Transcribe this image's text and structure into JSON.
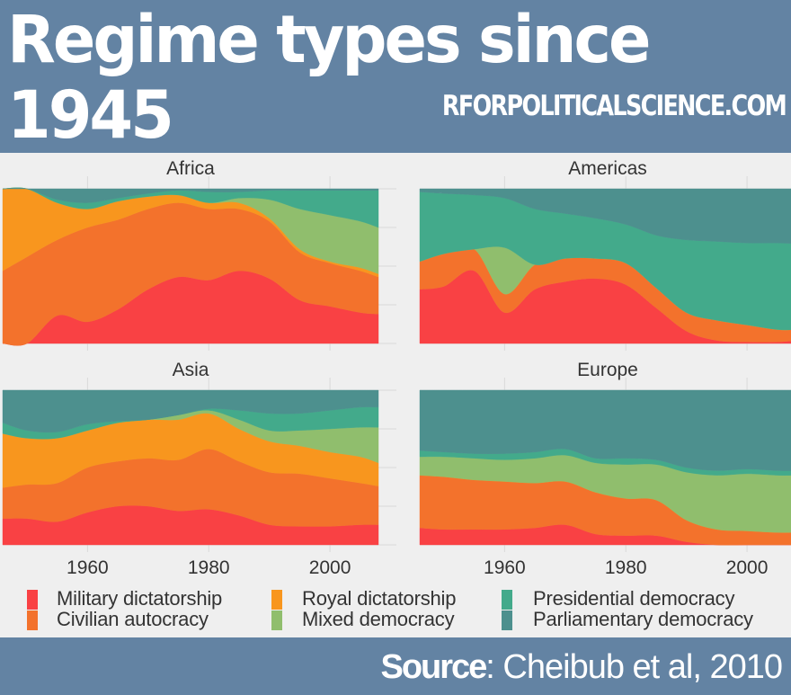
{
  "header": {
    "title": "Regime types since 1945",
    "site": "RFORPOLITICALSCIENCE.COM"
  },
  "footer": {
    "source_label": "Source",
    "source_text": ": Cheibub et al, 2010"
  },
  "colors": {
    "header_bg": "#6383a3",
    "panel_bg": "#efefef",
    "Military dictatorship": "#f94144",
    "Civilian autocracy": "#f3722c",
    "Royal dictatorship": "#f8961e",
    "Mixed democracy": "#90be6d",
    "Presidential democracy": "#43aa8b",
    "Parliamentary democracy": "#4d908e"
  },
  "legend": [
    {
      "label": "Military dictatorship",
      "key": "Military dictatorship"
    },
    {
      "label": "Civilian autocracy",
      "key": "Civilian autocracy"
    },
    {
      "label": "Royal dictatorship",
      "key": "Royal dictatorship"
    },
    {
      "label": "Mixed democracy",
      "key": "Mixed democracy"
    },
    {
      "label": "Presidential democracy",
      "key": "Presidential democracy"
    },
    {
      "label": "Parliamentary democracy",
      "key": "Parliamentary democracy"
    }
  ],
  "chart_data": {
    "type": "area",
    "stacking": "fill",
    "title": "Regime types since 1945",
    "xlabel": "",
    "ylabel": "",
    "xlim": [
      1946,
      2008
    ],
    "ylim": [
      0,
      1
    ],
    "x_ticks": [
      1960,
      1980,
      2000
    ],
    "y_ticks_labels": [],
    "grid": true,
    "legend_position": "bottom",
    "stack_order": [
      "Military dictatorship",
      "Civilian autocracy",
      "Royal dictatorship",
      "Mixed democracy",
      "Presidential democracy",
      "Parliamentary democracy"
    ],
    "x": [
      1946,
      1950,
      1955,
      1960,
      1965,
      1970,
      1975,
      1980,
      1985,
      1990,
      1995,
      2000,
      2005,
      2008
    ],
    "facets": [
      {
        "name": "Africa",
        "series": [
          {
            "name": "Military dictatorship",
            "values": [
              0,
              0,
              0.18,
              0.14,
              0.22,
              0.35,
              0.43,
              0.41,
              0.47,
              0.42,
              0.28,
              0.24,
              0.2,
              0.19
            ]
          },
          {
            "name": "Civilian autocracy",
            "values": [
              0.47,
              0.56,
              0.49,
              0.61,
              0.58,
              0.52,
              0.48,
              0.46,
              0.4,
              0.37,
              0.31,
              0.28,
              0.27,
              0.24
            ]
          },
          {
            "name": "Royal dictatorship",
            "values": [
              0.53,
              0.44,
              0.24,
              0.12,
              0.12,
              0.08,
              0.05,
              0.04,
              0.04,
              0.02,
              0.02,
              0.01,
              0.02,
              0.02
            ]
          },
          {
            "name": "Mixed democracy",
            "values": [
              0,
              0,
              0,
              0,
              0,
              0,
              0,
              0,
              0.03,
              0.12,
              0.26,
              0.3,
              0.3,
              0.3
            ]
          },
          {
            "name": "Presidential democracy",
            "values": [
              0,
              0,
              0.02,
              0.04,
              0.02,
              0.02,
              0.03,
              0.07,
              0.04,
              0.06,
              0.12,
              0.16,
              0.2,
              0.24
            ]
          },
          {
            "name": "Parliamentary democracy",
            "values": [
              0,
              0,
              0.07,
              0.09,
              0.06,
              0.03,
              0.01,
              0.02,
              0.02,
              0.01,
              0.01,
              0.01,
              0.01,
              0.01
            ]
          }
        ]
      },
      {
        "name": "Americas",
        "series": [
          {
            "name": "Military dictatorship",
            "values": [
              0.35,
              0.37,
              0.47,
              0.2,
              0.35,
              0.4,
              0.42,
              0.38,
              0.23,
              0.08,
              0.02,
              0.01,
              0.01,
              0.02
            ]
          },
          {
            "name": "Civilian autocracy",
            "values": [
              0.18,
              0.21,
              0.14,
              0.12,
              0.16,
              0.15,
              0.13,
              0.14,
              0.13,
              0.12,
              0.13,
              0.11,
              0.08,
              0.07
            ]
          },
          {
            "name": "Royal dictatorship",
            "values": [
              0,
              0,
              0,
              0,
              0,
              0,
              0,
              0,
              0,
              0,
              0,
              0,
              0,
              0
            ]
          },
          {
            "name": "Mixed democracy",
            "values": [
              0,
              0,
              0,
              0.3,
              0,
              0,
              0,
              0,
              0,
              0,
              0,
              0,
              0,
              0
            ]
          },
          {
            "name": "Presidential democracy",
            "values": [
              0.45,
              0.39,
              0.35,
              0.32,
              0.36,
              0.29,
              0.26,
              0.25,
              0.34,
              0.47,
              0.51,
              0.53,
              0.56,
              0.555
            ]
          },
          {
            "name": "Parliamentary democracy",
            "values": [
              0.02,
              0.03,
              0.04,
              0.06,
              0.13,
              0.16,
              0.19,
              0.23,
              0.3,
              0.33,
              0.34,
              0.35,
              0.35,
              0.355
            ]
          }
        ]
      },
      {
        "name": "Asia",
        "series": [
          {
            "name": "Military dictatorship",
            "values": [
              0.17,
              0.17,
              0.15,
              0.21,
              0.25,
              0.25,
              0.22,
              0.23,
              0.19,
              0.13,
              0.12,
              0.12,
              0.13,
              0.13
            ]
          },
          {
            "name": "Civilian autocracy",
            "values": [
              0.2,
              0.22,
              0.25,
              0.29,
              0.29,
              0.31,
              0.33,
              0.39,
              0.35,
              0.34,
              0.34,
              0.31,
              0.27,
              0.25
            ]
          },
          {
            "name": "Royal dictatorship",
            "values": [
              0.35,
              0.3,
              0.29,
              0.24,
              0.25,
              0.25,
              0.26,
              0.23,
              0.21,
              0.2,
              0.18,
              0.17,
              0.17,
              0.15
            ]
          },
          {
            "name": "Mixed democracy",
            "values": [
              0,
              0,
              0,
              0,
              0,
              0,
              0.03,
              0.02,
              0.06,
              0.07,
              0.1,
              0.15,
              0.19,
              0.23
            ]
          },
          {
            "name": "Presidential democracy",
            "values": [
              0.07,
              0.05,
              0.04,
              0.04,
              0.01,
              0,
              0,
              0.01,
              0.06,
              0.11,
              0.11,
              0.12,
              0.13,
              0.13
            ]
          },
          {
            "name": "Parliamentary democracy",
            "values": [
              0.21,
              0.26,
              0.27,
              0.22,
              0.2,
              0.19,
              0.16,
              0.12,
              0.13,
              0.15,
              0.15,
              0.13,
              0.11,
              0.11
            ]
          }
        ]
      },
      {
        "name": "Europe",
        "series": [
          {
            "name": "Military dictatorship",
            "values": [
              0.11,
              0.1,
              0.1,
              0.1,
              0.11,
              0.13,
              0.07,
              0.06,
              0.06,
              0.02,
              0,
              0,
              0,
              0
            ]
          },
          {
            "name": "Civilian autocracy",
            "values": [
              0.34,
              0.34,
              0.32,
              0.31,
              0.29,
              0.28,
              0.27,
              0.24,
              0.23,
              0.14,
              0.1,
              0.09,
              0.08,
              0.08
            ]
          },
          {
            "name": "Royal dictatorship",
            "values": [
              0,
              0,
              0,
              0,
              0,
              0,
              0,
              0,
              0,
              0,
              0,
              0,
              0,
              0
            ]
          },
          {
            "name": "Mixed democracy",
            "values": [
              0.12,
              0.13,
              0.14,
              0.14,
              0.16,
              0.17,
              0.19,
              0.22,
              0.23,
              0.31,
              0.35,
              0.37,
              0.37,
              0.37
            ]
          },
          {
            "name": "Presidential democracy",
            "values": [
              0.04,
              0.03,
              0.03,
              0.04,
              0.04,
              0.04,
              0.03,
              0.04,
              0.03,
              0.03,
              0.03,
              0.03,
              0.03,
              0.03
            ]
          },
          {
            "name": "Parliamentary democracy",
            "values": [
              0.39,
              0.4,
              0.41,
              0.41,
              0.4,
              0.38,
              0.44,
              0.44,
              0.45,
              0.5,
              0.52,
              0.51,
              0.52,
              0.52
            ]
          }
        ]
      }
    ]
  }
}
